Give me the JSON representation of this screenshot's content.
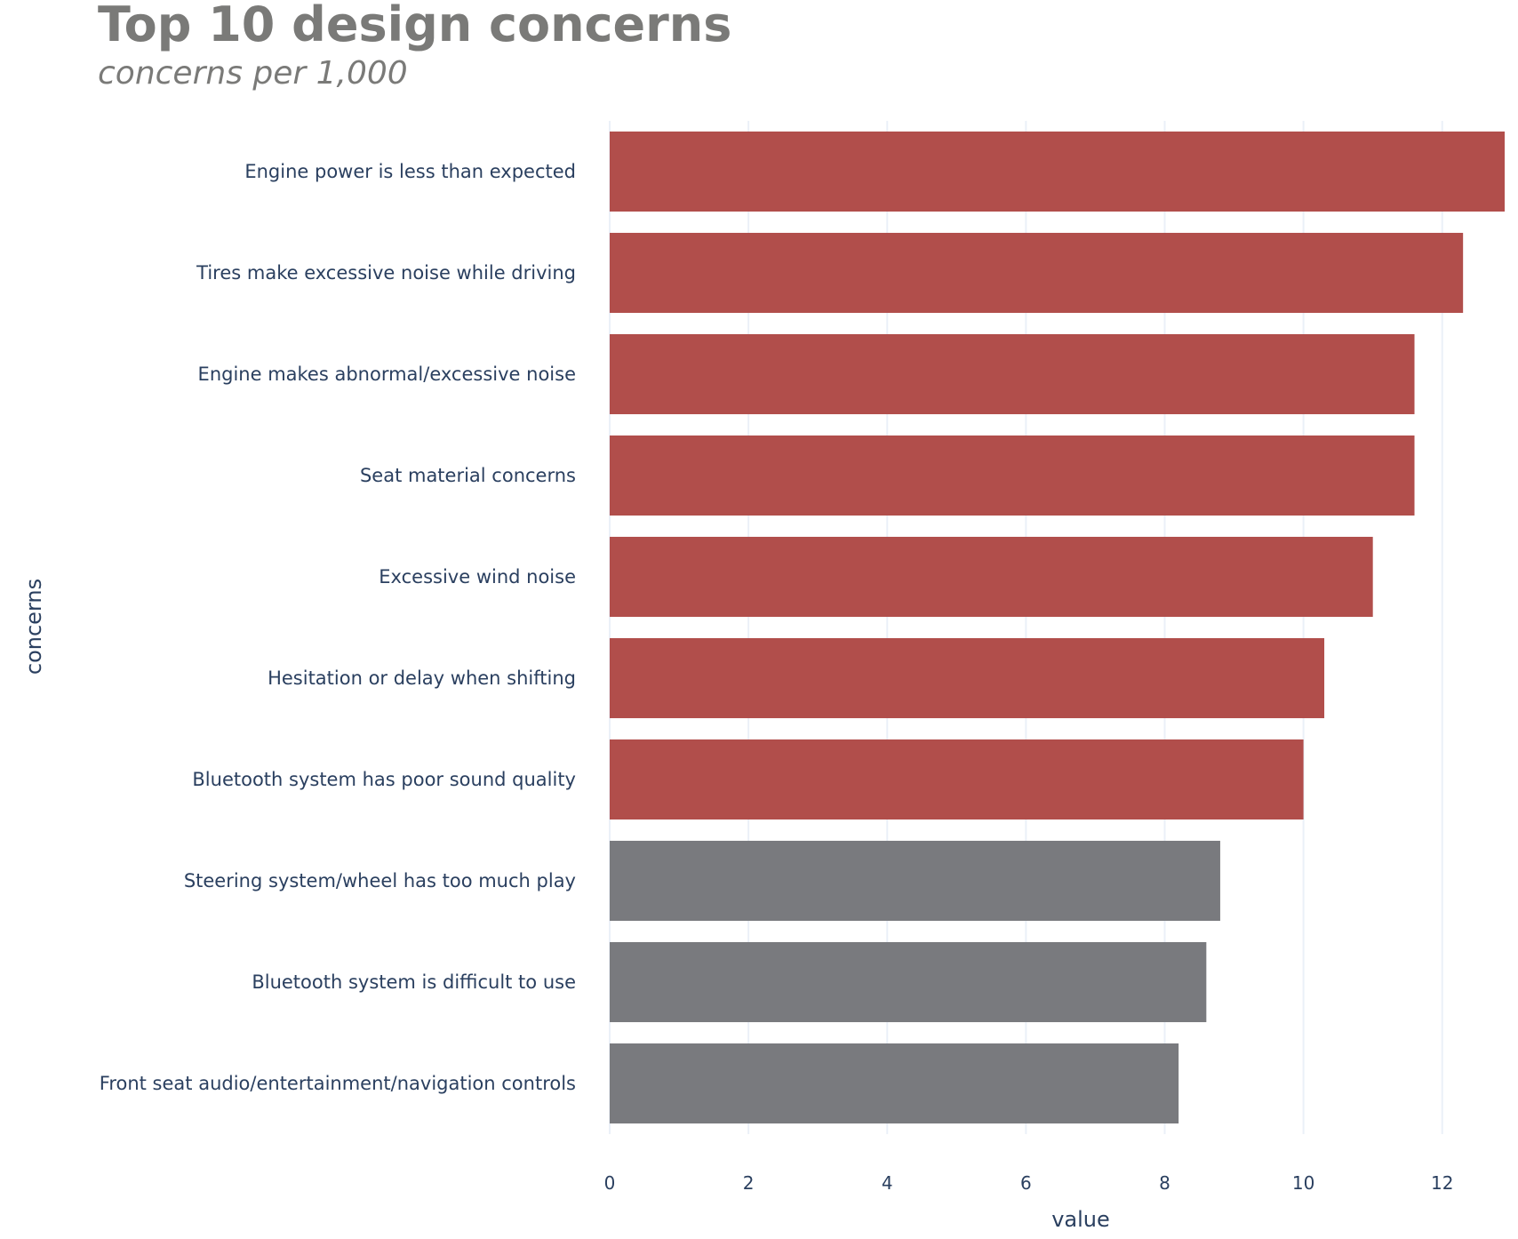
{
  "chart_data": {
    "type": "bar",
    "orientation": "horizontal",
    "title": "Top 10 design concerns",
    "subtitle": "concerns per 1,000",
    "xlabel": "value",
    "ylabel": "concerns",
    "xlim": [
      0,
      12.9
    ],
    "xticks": [
      0,
      2,
      4,
      6,
      8,
      10,
      12
    ],
    "grid": true,
    "legend": "none",
    "categories": [
      "Engine power is less than expected",
      "Tires make excessive noise while driving",
      "Engine makes abnormal/excessive noise",
      "Seat material concerns",
      "Excessive wind noise",
      "Hesitation or delay when shifting",
      "Bluetooth system has poor sound quality",
      "Steering system/wheel has too much play",
      "Bluetooth system is difficult to use",
      "Front seat audio/entertainment/navigation controls"
    ],
    "values": [
      12.9,
      12.3,
      11.6,
      11.6,
      11.0,
      10.3,
      10.0,
      8.8,
      8.6,
      8.2
    ],
    "bar_colors": [
      "#b14e4b",
      "#b14e4b",
      "#b14e4b",
      "#b14e4b",
      "#b14e4b",
      "#b14e4b",
      "#b14e4b",
      "#797a7e",
      "#797a7e",
      "#797a7e"
    ],
    "colors": {
      "highlight": "#b14e4b",
      "muted": "#797a7e",
      "title": "#7a7a78",
      "text": "#2a3f5f",
      "grid": "#ebf0f8"
    }
  }
}
